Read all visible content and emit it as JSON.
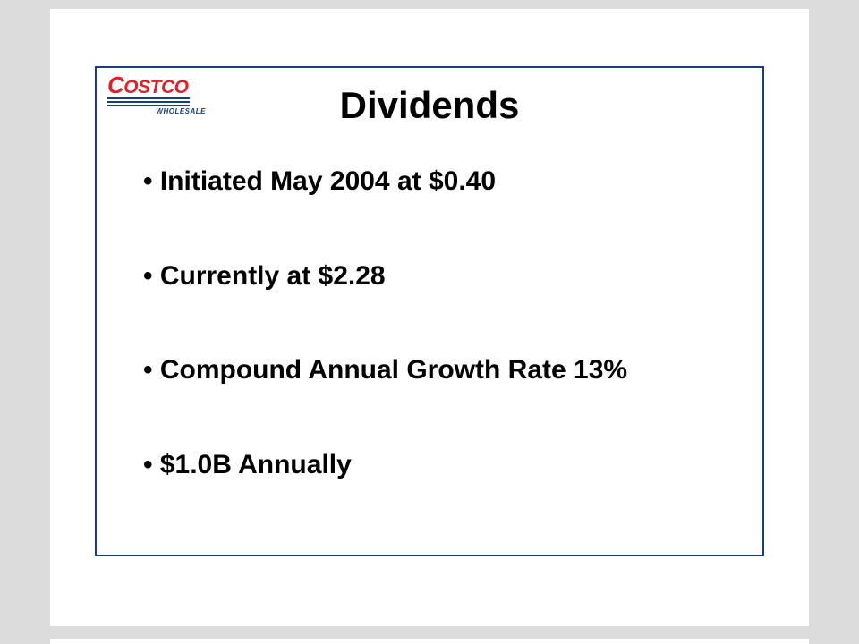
{
  "logo": {
    "brand_top": "COSTCO",
    "brand_sub": "WHOLESALE",
    "brand_color": "#d8232a",
    "sub_color": "#1a3d7c"
  },
  "slide": {
    "title": "Dividends",
    "border_color": "#1a3d7c",
    "background": "#ffffff",
    "page_background": "#dcdcdc"
  },
  "bullets": [
    "Initiated May 2004 at $0.40",
    "Currently at $2.28",
    "Compound Annual Growth Rate 13%",
    "$1.0B Annually"
  ]
}
